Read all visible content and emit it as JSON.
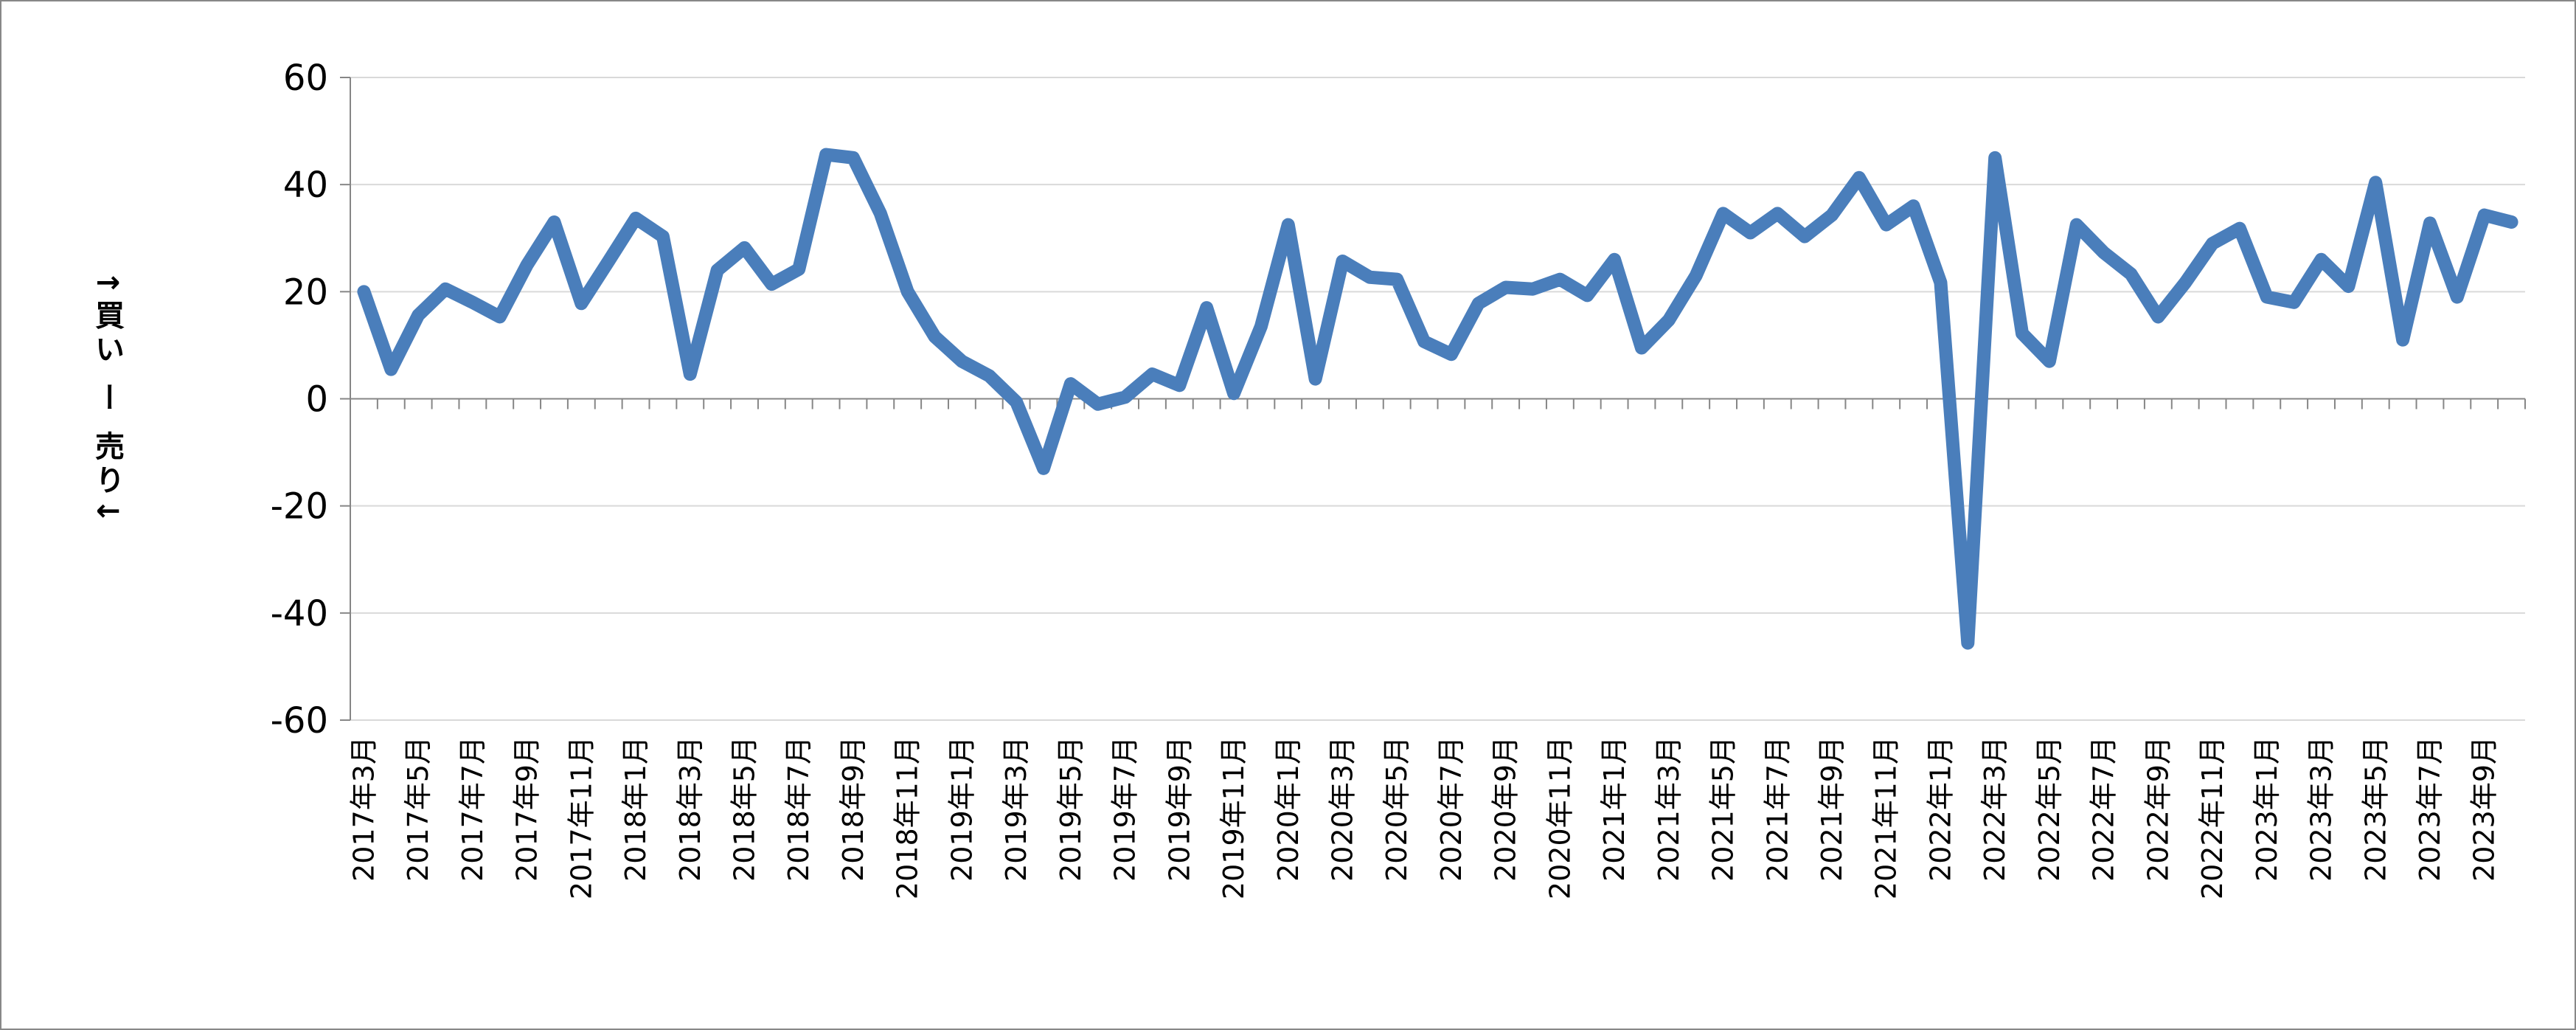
{
  "chart_data": {
    "type": "line",
    "y_label": "↑買い ー 売り↓",
    "categories": [
      "2017年3月",
      null,
      "2017年5月",
      null,
      "2017年7月",
      null,
      "2017年9月",
      null,
      "2017年11月",
      null,
      "2018年1月",
      null,
      "2018年3月",
      null,
      "2018年5月",
      null,
      "2018年7月",
      null,
      "2018年9月",
      null,
      "2018年11月",
      null,
      "2019年1月",
      null,
      "2019年3月",
      null,
      "2019年5月",
      null,
      "2019年7月",
      null,
      "2019年9月",
      null,
      "2019年11月",
      null,
      "2020年1月",
      null,
      "2020年3月",
      null,
      "2020年5月",
      null,
      "2020年7月",
      null,
      "2020年9月",
      null,
      "2020年11月",
      null,
      "2021年1月",
      null,
      "2021年3月",
      null,
      "2021年5月",
      null,
      "2021年7月",
      null,
      "2021年9月",
      null,
      "2021年11月",
      null,
      "2022年1月",
      null,
      "2022年3月",
      null,
      "2022年5月",
      null,
      "2022年7月",
      null,
      "2022年9月",
      null,
      "2022年11月",
      null,
      "2023年1月",
      null,
      "2023年3月",
      null,
      "2023年5月",
      null,
      "2023年7月",
      null,
      "2023年9月",
      null
    ],
    "values": [
      20,
      5.5,
      15.6,
      20.5,
      18,
      15.3,
      25,
      33,
      17.8,
      25.7,
      33.7,
      30.3,
      4.6,
      24,
      28.2,
      21.4,
      24.2,
      45.6,
      45,
      34.6,
      20,
      11.6,
      7,
      4.3,
      -0.6,
      -13,
      2.8,
      -1,
      0.3,
      4.6,
      2.5,
      17,
      1,
      13.5,
      32.5,
      3.7,
      25.7,
      22.7,
      22.3,
      10.7,
      8.3,
      17.8,
      20.8,
      20.5,
      22.3,
      19.3,
      26,
      9.5,
      14.7,
      23,
      34.6,
      31,
      34.6,
      30.3,
      34.3,
      41.3,
      32.5,
      36,
      21.7,
      -45.6,
      45,
      12.2,
      7,
      32.5,
      27.3,
      23.3,
      15.3,
      21.7,
      29,
      31.8,
      19,
      18,
      26,
      21,
      40.4,
      11,
      32.8,
      19,
      34.3,
      33
    ],
    "color": "#4a7ebb",
    "ylim": [
      -60,
      60
    ],
    "yticks": [
      -60,
      -40,
      -20,
      0,
      20,
      40,
      60
    ],
    "grid": true
  }
}
